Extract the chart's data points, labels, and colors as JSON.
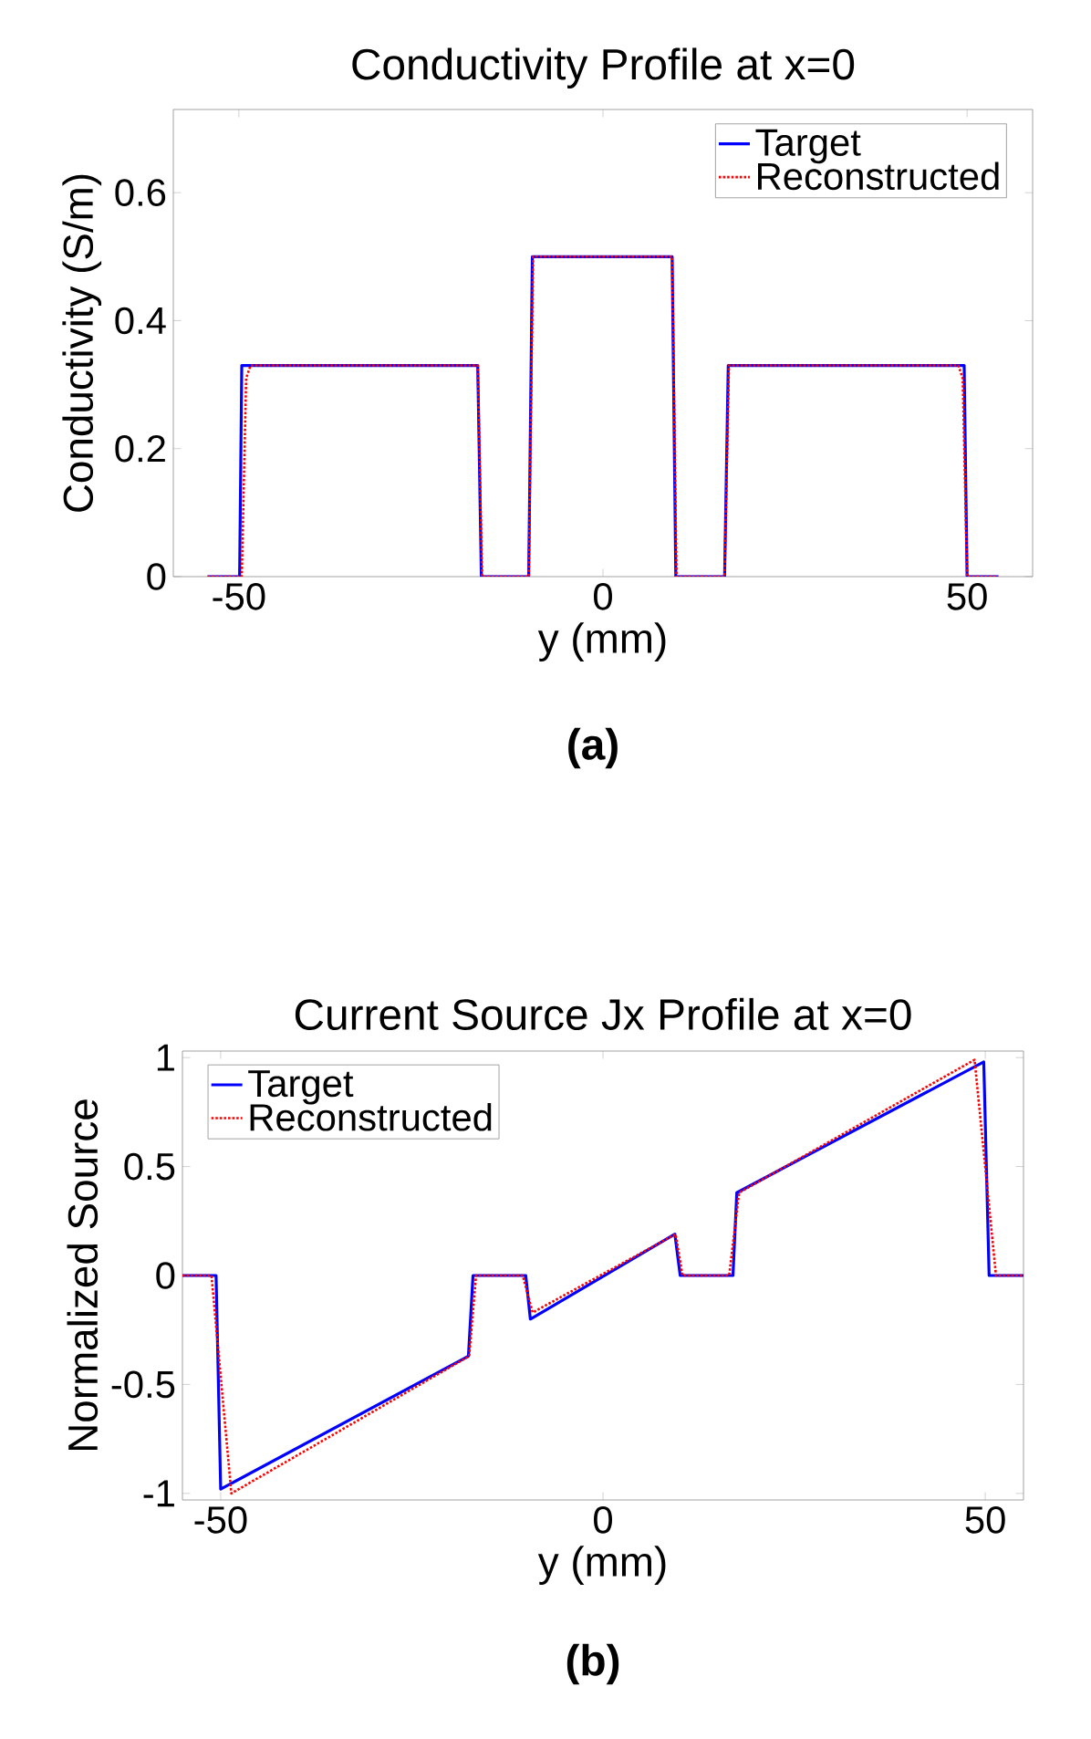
{
  "chart_data": [
    {
      "type": "line",
      "title": "Conductivity Profile at x=0",
      "xlabel": "y (mm)",
      "ylabel": "Conductivity (S/m)",
      "annotations": [
        "(a)"
      ],
      "xlim": [
        -59,
        59
      ],
      "ylim": [
        0,
        0.73
      ],
      "xticks": [
        -50,
        0,
        50
      ],
      "yticks": [
        0,
        0.2,
        0.4,
        0.6
      ],
      "legend": "top right",
      "series": [
        {
          "name": "Target",
          "color": "#0000ff",
          "line_style": "solid",
          "x": [
            -54.3,
            -49.9,
            -49.6,
            -17.2,
            -16.7,
            -10.2,
            -9.7,
            9.5,
            10.0,
            16.7,
            17.2,
            49.6,
            50.0,
            54.3
          ],
          "values": [
            0,
            0,
            0.33,
            0.33,
            0,
            0,
            0.5,
            0.5,
            0,
            0,
            0.33,
            0.33,
            0,
            0
          ]
        },
        {
          "name": "Reconstructed",
          "color": "#ff0000",
          "line_style": "dotted",
          "x": [
            -54.3,
            -49.6,
            -49.0,
            -48.4,
            -17.2,
            -16.6,
            -10.2,
            -9.6,
            9.5,
            10.1,
            16.7,
            17.3,
            48.8,
            49.4,
            50.0,
            54.3
          ],
          "values": [
            0,
            0,
            0.31,
            0.33,
            0.33,
            0,
            0,
            0.5,
            0.5,
            0,
            0,
            0.33,
            0.33,
            0.31,
            0,
            0
          ]
        }
      ]
    },
    {
      "type": "line",
      "title": "Current Source Jx Profile at x=0",
      "xlabel": "y (mm)",
      "ylabel": "Normalized Source",
      "annotations": [
        "(b)"
      ],
      "xlim": [
        -55,
        55
      ],
      "ylim": [
        -1.03,
        1.03
      ],
      "xticks": [
        -50,
        0,
        50
      ],
      "yticks": [
        -1,
        -0.5,
        0,
        0.5,
        1
      ],
      "legend": "top left",
      "series": [
        {
          "name": "Target",
          "color": "#0000ff",
          "line_style": "solid",
          "x": [
            -55,
            -50.6,
            -50.0,
            -17.6,
            -17.0,
            -10.1,
            -9.5,
            9.4,
            10.1,
            17.0,
            17.5,
            49.8,
            50.5,
            55
          ],
          "values": [
            0,
            0,
            -0.98,
            -0.37,
            0,
            0,
            -0.2,
            0.19,
            0,
            0,
            0.38,
            0.98,
            0,
            0
          ]
        },
        {
          "name": "Reconstructed",
          "color": "#ff0000",
          "line_style": "dotted",
          "x": [
            -55,
            -51.2,
            -48.6,
            -17.5,
            -16.6,
            -10.5,
            -9.2,
            9.5,
            10.4,
            16.5,
            17.8,
            48.6,
            51.4,
            55
          ],
          "values": [
            0,
            0,
            -1.0,
            -0.37,
            0,
            0,
            -0.17,
            0.19,
            0,
            0,
            0.38,
            0.99,
            0,
            0
          ]
        }
      ]
    }
  ]
}
